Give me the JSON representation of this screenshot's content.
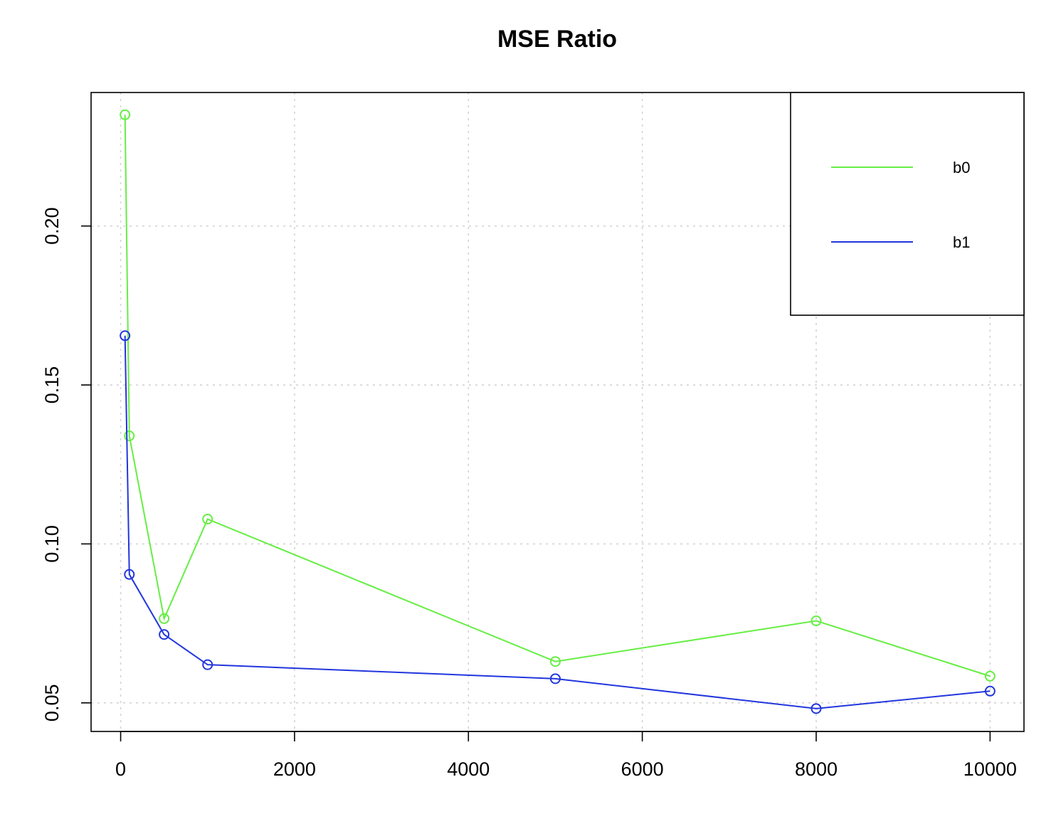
{
  "chart_data": {
    "type": "line",
    "title": "MSE Ratio",
    "xlabel": "",
    "ylabel": "",
    "x": [
      50,
      100,
      500,
      1000,
      5000,
      8000,
      10000
    ],
    "series": [
      {
        "name": "b0",
        "color": "#66EE44",
        "values": [
          0.235,
          0.134,
          0.0765,
          0.1078,
          0.063,
          0.0758,
          0.0584
        ]
      },
      {
        "name": "b1",
        "color": "#2236DD",
        "values": [
          0.1655,
          0.0904,
          0.0715,
          0.062,
          0.0576,
          0.0482,
          0.0537
        ]
      }
    ],
    "xlim": [
      -340,
      10390
    ],
    "ylim": [
      0.041,
      0.242
    ],
    "x_ticks": [
      "0",
      "2000",
      "4000",
      "6000",
      "8000",
      "10000"
    ],
    "y_ticks": [
      "0.05",
      "0.10",
      "0.15",
      "0.20"
    ],
    "grid": true,
    "legend_position": "top-right",
    "marker": "open-circle"
  }
}
